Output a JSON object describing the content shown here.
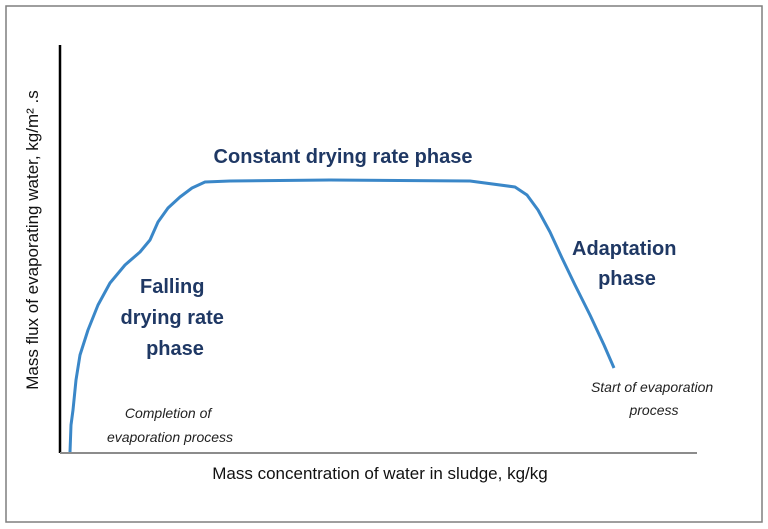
{
  "axes": {
    "x_label": "Mass concentration of water in sludge, kg/kg",
    "y_label": "Mass flux of evaporating water, kg/m² .s"
  },
  "labels": {
    "constant_phase": "Constant drying rate phase",
    "falling_phase": [
      "Falling",
      "drying rate",
      "phase"
    ],
    "adaptation_phase": [
      "Adaptation",
      "phase"
    ],
    "start": [
      "Start of evaporation",
      "process"
    ],
    "completion": [
      "Completion of",
      "evaporation process"
    ]
  }
}
